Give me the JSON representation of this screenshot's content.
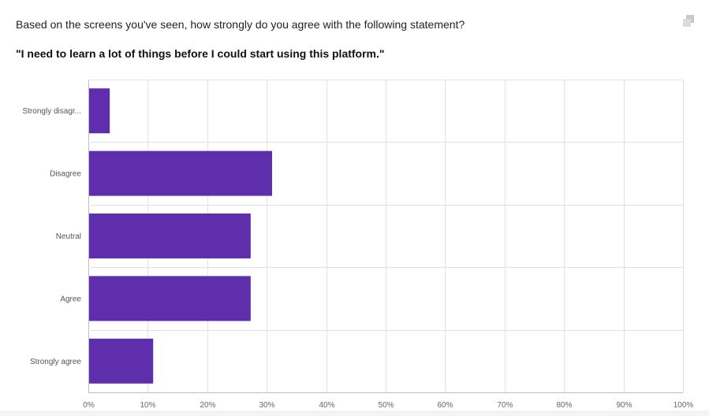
{
  "question": "Based on the screens you've seen, how strongly do you agree with the following statement?",
  "statement": "\"I need to learn a lot of things before I could start using this platform.\"",
  "copy_icon": "copy-icon",
  "colors": {
    "bar": "#5f2ead",
    "grid": "#e2e2e2",
    "axis": "#bdbdbd"
  },
  "chart_data": {
    "type": "bar",
    "orientation": "horizontal",
    "categories": [
      "Strongly disagr...",
      "Disagree",
      "Neutral",
      "Agree",
      "Strongly agree"
    ],
    "values": [
      3.6,
      30.9,
      27.3,
      27.3,
      10.9
    ],
    "title": "",
    "xlabel": "",
    "ylabel": "",
    "xlim": [
      0,
      100
    ],
    "x_ticks": [
      "0%",
      "10%",
      "20%",
      "30%",
      "40%",
      "50%",
      "60%",
      "70%",
      "80%",
      "90%",
      "100%"
    ],
    "grid": true,
    "legend": "none"
  }
}
